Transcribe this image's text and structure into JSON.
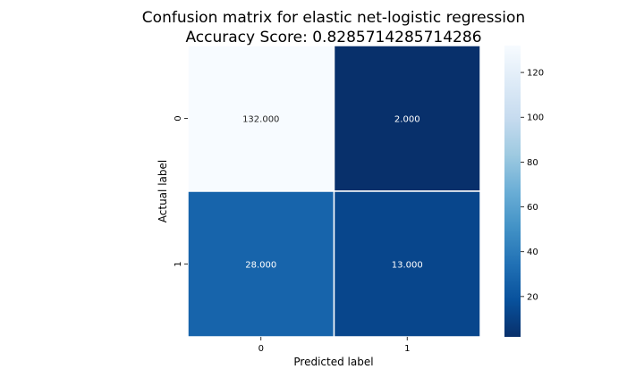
{
  "chart_data": {
    "type": "heatmap",
    "title": "Confusion matrix for elastic net-logistic regression",
    "subtitle": "Accuracy Score: 0.8285714285714286",
    "xlabel": "Predicted label",
    "ylabel": "Actual label",
    "x_categories": [
      "0",
      "1"
    ],
    "y_categories": [
      "0",
      "1"
    ],
    "values": [
      [
        132,
        2
      ],
      [
        28,
        13
      ]
    ],
    "cell_labels": [
      [
        "132.000",
        "2.000"
      ],
      [
        "28.000",
        "13.000"
      ]
    ],
    "colormap": "Blues_r",
    "colorbar": {
      "range": [
        2,
        132
      ],
      "ticks": [
        20,
        40,
        60,
        80,
        100,
        120
      ],
      "tick_labels": [
        "20",
        "40",
        "60",
        "80",
        "100",
        "120"
      ]
    },
    "colors": {
      "low": "#08306b",
      "high": "#f7fbff",
      "text_on_dark": "#ffffff",
      "text_on_light": "#262626"
    }
  }
}
